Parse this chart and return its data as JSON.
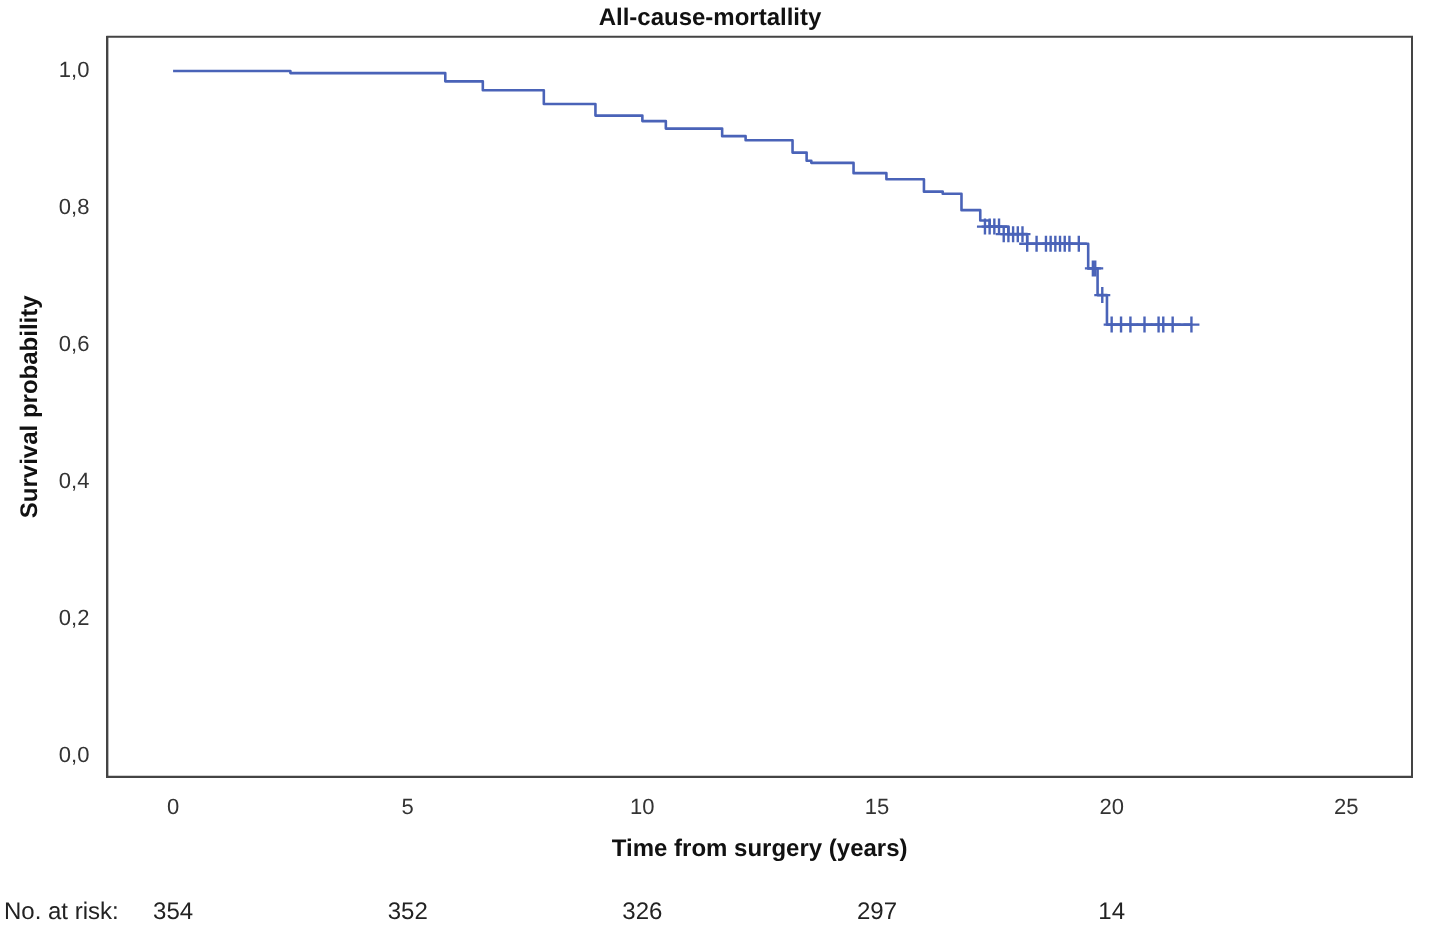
{
  "chart_data": {
    "type": "step",
    "title": "All-cause-mortallity",
    "xlabel": "Time from surgery (years)",
    "ylabel": "Survival probability",
    "xlim": [
      -1.4,
      26.4
    ],
    "xticks": [
      0,
      5,
      10,
      15,
      20,
      25
    ],
    "ylim": [
      -0.03,
      1.05
    ],
    "yticks": [
      {
        "value": 0,
        "label": "0,0"
      },
      {
        "value": 0.2,
        "label": "0,2"
      },
      {
        "value": 0.4,
        "label": "0,4"
      },
      {
        "value": 0.6,
        "label": "0,6"
      },
      {
        "value": 0.8,
        "label": "0,8"
      },
      {
        "value": 1,
        "label": "1,0"
      }
    ],
    "grid": false,
    "legend": false,
    "series": [
      {
        "type": "step",
        "color": "#4a63b8",
        "marker": "none",
        "x": [
          0,
          2.5,
          5.0,
          5.8,
          6.6,
          7.9,
          9.0,
          10.0,
          10.5,
          11.7,
          12.2,
          13.2,
          13.5,
          13.6,
          14.5,
          15.2,
          16.0,
          16.4,
          16.8,
          17.2,
          17.4,
          17.8,
          18.2,
          19.5,
          19.7,
          19.9,
          21.7
        ],
        "values": [
          1.0,
          0.997,
          0.997,
          0.985,
          0.972,
          0.952,
          0.935,
          0.927,
          0.916,
          0.905,
          0.899,
          0.881,
          0.869,
          0.866,
          0.851,
          0.842,
          0.824,
          0.821,
          0.797,
          0.782,
          0.773,
          0.762,
          0.748,
          0.712,
          0.673,
          0.63,
          0.63
        ]
      },
      {
        "type": "scatter",
        "color": "#4a63b8",
        "marker": "cross",
        "x": [
          17.3,
          17.4,
          17.5,
          17.6,
          17.7,
          17.8,
          17.9,
          18.0,
          18.1,
          18.2,
          18.4,
          18.6,
          18.7,
          18.8,
          18.9,
          19.0,
          19.1,
          19.3,
          19.6,
          19.65,
          19.8,
          20.0,
          20.2,
          20.4,
          20.7,
          21.0,
          21.1,
          21.3,
          21.7
        ],
        "values": [
          0.773,
          0.773,
          0.773,
          0.773,
          0.762,
          0.762,
          0.762,
          0.762,
          0.762,
          0.748,
          0.748,
          0.748,
          0.748,
          0.748,
          0.748,
          0.748,
          0.748,
          0.748,
          0.712,
          0.712,
          0.673,
          0.63,
          0.63,
          0.63,
          0.63,
          0.63,
          0.63,
          0.63,
          0.63
        ]
      }
    ],
    "annotations": [
      "No. at risk:",
      "354",
      "352",
      "326",
      "297",
      "14"
    ]
  }
}
